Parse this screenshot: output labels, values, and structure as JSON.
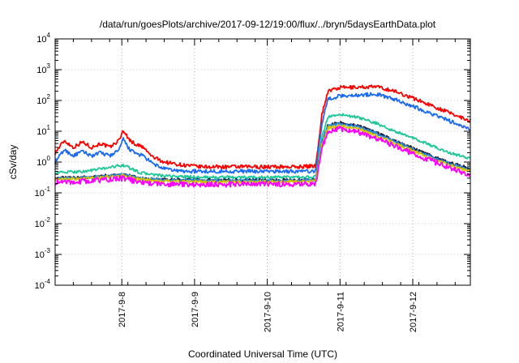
{
  "chart_data": {
    "type": "line",
    "title": "/data/run/goesPlots/archive/2017-09-12/19:00/flux/../bryn/5daysEarthData.plot",
    "xlabel": "Coordinated Universal Time (UTC)",
    "ylabel": "cSv/day",
    "yscale": "log",
    "ylim": [
      0.0001,
      10000
    ],
    "xlim": [
      "2017-09-07 02:00",
      "2017-09-12 19:00"
    ],
    "y_ticks": [
      {
        "base": "10",
        "exp": "-4"
      },
      {
        "base": "10",
        "exp": "-3"
      },
      {
        "base": "10",
        "exp": "-2"
      },
      {
        "base": "10",
        "exp": "-1"
      },
      {
        "base": "10",
        "exp": "0"
      },
      {
        "base": "10",
        "exp": "1"
      },
      {
        "base": "10",
        "exp": "2"
      },
      {
        "base": "10",
        "exp": "3"
      },
      {
        "base": "10",
        "exp": "4"
      }
    ],
    "x_ticks": [
      {
        "label": "2017-9-8",
        "t": "2017-09-08 00:00"
      },
      {
        "label": "2017-9-9",
        "t": "2017-09-09 00:00"
      },
      {
        "label": "2017-9-10",
        "t": "2017-09-10 00:00"
      },
      {
        "label": "2017-9-11",
        "t": "2017-09-11 00:00"
      },
      {
        "label": "2017-9-12",
        "t": "2017-09-12 00:00"
      }
    ],
    "grid": true,
    "x_grid_style": "dotted",
    "series": [
      {
        "color": "#ff0000",
        "x": [
          "2017-09-07 02:00",
          "2017-09-07 05:00",
          "2017-09-07 08:00",
          "2017-09-07 11:00",
          "2017-09-07 14:00",
          "2017-09-07 17:00",
          "2017-09-07 20:00",
          "2017-09-07 23:00",
          "2017-09-08 00:30",
          "2017-09-08 02:00",
          "2017-09-08 04:00",
          "2017-09-08 07:00",
          "2017-09-08 10:00",
          "2017-09-08 14:00",
          "2017-09-08 20:00",
          "2017-09-09 02:00",
          "2017-09-09 10:00",
          "2017-09-09 18:00",
          "2017-09-10 02:00",
          "2017-09-10 10:00",
          "2017-09-10 16:00",
          "2017-09-10 18:00",
          "2017-09-10 20:00",
          "2017-09-11 00:00",
          "2017-09-11 06:00",
          "2017-09-11 12:00",
          "2017-09-11 18:00",
          "2017-09-12 00:00",
          "2017-09-12 06:00",
          "2017-09-12 12:00",
          "2017-09-12 19:00"
        ],
        "y": [
          2.0,
          5.0,
          3.0,
          4.5,
          3.0,
          4.0,
          3.0,
          5.0,
          11,
          6.0,
          4.0,
          3.0,
          1.5,
          1.0,
          0.8,
          0.7,
          0.7,
          0.7,
          0.7,
          0.7,
          0.75,
          35,
          200,
          260,
          270,
          280,
          200,
          120,
          70,
          40,
          22
        ]
      },
      {
        "color": "#1b6cf2",
        "x": [
          "2017-09-07 02:00",
          "2017-09-07 05:00",
          "2017-09-07 08:00",
          "2017-09-07 11:00",
          "2017-09-07 14:00",
          "2017-09-07 17:00",
          "2017-09-07 20:00",
          "2017-09-07 23:00",
          "2017-09-08 00:30",
          "2017-09-08 02:00",
          "2017-09-08 04:00",
          "2017-09-08 07:00",
          "2017-09-08 10:00",
          "2017-09-08 14:00",
          "2017-09-08 20:00",
          "2017-09-09 02:00",
          "2017-09-09 10:00",
          "2017-09-09 18:00",
          "2017-09-10 02:00",
          "2017-09-10 10:00",
          "2017-09-10 16:00",
          "2017-09-10 18:00",
          "2017-09-10 20:00",
          "2017-09-11 00:00",
          "2017-09-11 06:00",
          "2017-09-11 12:00",
          "2017-09-11 18:00",
          "2017-09-12 00:00",
          "2017-09-12 06:00",
          "2017-09-12 12:00",
          "2017-09-12 19:00"
        ],
        "y": [
          1.0,
          2.5,
          1.6,
          2.2,
          1.6,
          2.0,
          1.6,
          2.4,
          5.5,
          3.0,
          2.0,
          1.6,
          0.9,
          0.6,
          0.5,
          0.5,
          0.5,
          0.5,
          0.5,
          0.5,
          0.5,
          18,
          110,
          140,
          150,
          160,
          110,
          65,
          38,
          22,
          11
        ]
      },
      {
        "color": "#1fc799",
        "x": [
          "2017-09-07 02:00",
          "2017-09-07 12:00",
          "2017-09-08 00:30",
          "2017-09-08 06:00",
          "2017-09-08 14:00",
          "2017-09-09 02:00",
          "2017-09-09 18:00",
          "2017-09-10 10:00",
          "2017-09-10 16:00",
          "2017-09-10 18:00",
          "2017-09-10 20:00",
          "2017-09-11 00:00",
          "2017-09-11 06:00",
          "2017-09-11 12:00",
          "2017-09-11 18:00",
          "2017-09-12 00:00",
          "2017-09-12 06:00",
          "2017-09-12 12:00",
          "2017-09-12 19:00"
        ],
        "y": [
          0.45,
          0.5,
          0.8,
          0.45,
          0.35,
          0.32,
          0.32,
          0.32,
          0.33,
          6,
          30,
          35,
          28,
          18,
          10,
          6,
          3.5,
          2.0,
          1.3
        ]
      },
      {
        "color": "#1a1a3a",
        "x": [
          "2017-09-07 02:00",
          "2017-09-07 12:00",
          "2017-09-08 00:30",
          "2017-09-08 06:00",
          "2017-09-08 14:00",
          "2017-09-09 02:00",
          "2017-09-09 18:00",
          "2017-09-10 10:00",
          "2017-09-10 16:00",
          "2017-09-10 18:00",
          "2017-09-10 20:00",
          "2017-09-11 00:00",
          "2017-09-11 06:00",
          "2017-09-11 12:00",
          "2017-09-11 18:00",
          "2017-09-12 00:00",
          "2017-09-12 06:00",
          "2017-09-12 12:00",
          "2017-09-12 19:00"
        ],
        "y": [
          0.3,
          0.32,
          0.4,
          0.3,
          0.27,
          0.26,
          0.26,
          0.26,
          0.27,
          4.0,
          16,
          19,
          15,
          9,
          5,
          2.8,
          1.6,
          0.95,
          0.62
        ]
      },
      {
        "color": "#2e8ad6",
        "x": [
          "2017-09-07 02:00",
          "2017-09-07 12:00",
          "2017-09-08 00:30",
          "2017-09-08 06:00",
          "2017-09-08 14:00",
          "2017-09-09 02:00",
          "2017-09-09 18:00",
          "2017-09-10 10:00",
          "2017-09-10 16:00",
          "2017-09-10 18:00",
          "2017-09-10 20:00",
          "2017-09-11 00:00",
          "2017-09-11 06:00",
          "2017-09-11 12:00",
          "2017-09-11 18:00",
          "2017-09-12 00:00",
          "2017-09-12 06:00",
          "2017-09-12 12:00",
          "2017-09-12 19:00"
        ],
        "y": [
          0.29,
          0.31,
          0.39,
          0.29,
          0.26,
          0.25,
          0.25,
          0.25,
          0.26,
          3.8,
          15,
          17.5,
          14,
          8.5,
          4.7,
          2.6,
          1.5,
          0.9,
          0.58
        ]
      },
      {
        "color": "#d4c400",
        "x": [
          "2017-09-07 02:00",
          "2017-09-07 12:00",
          "2017-09-08 00:30",
          "2017-09-08 06:00",
          "2017-09-08 14:00",
          "2017-09-09 02:00",
          "2017-09-09 18:00",
          "2017-09-10 10:00",
          "2017-09-10 16:00",
          "2017-09-10 18:00",
          "2017-09-10 20:00",
          "2017-09-11 00:00",
          "2017-09-11 06:00",
          "2017-09-11 12:00",
          "2017-09-11 18:00",
          "2017-09-12 00:00",
          "2017-09-12 06:00",
          "2017-09-12 12:00",
          "2017-09-12 19:00"
        ],
        "y": [
          0.27,
          0.29,
          0.36,
          0.27,
          0.24,
          0.23,
          0.23,
          0.23,
          0.24,
          3.4,
          13,
          15,
          12,
          7.2,
          4.1,
          2.3,
          1.3,
          0.8,
          0.5
        ]
      },
      {
        "color": "#ff00ff",
        "x": [
          "2017-09-07 02:00",
          "2017-09-07 12:00",
          "2017-09-08 00:30",
          "2017-09-08 06:00",
          "2017-09-08 14:00",
          "2017-09-09 02:00",
          "2017-09-09 18:00",
          "2017-09-10 10:00",
          "2017-09-10 16:00",
          "2017-09-10 18:00",
          "2017-09-10 20:00",
          "2017-09-11 00:00",
          "2017-09-11 06:00",
          "2017-09-11 12:00",
          "2017-09-11 18:00",
          "2017-09-12 00:00",
          "2017-09-12 06:00",
          "2017-09-12 12:00",
          "2017-09-12 19:00"
        ],
        "y": [
          0.22,
          0.24,
          0.3,
          0.22,
          0.19,
          0.19,
          0.19,
          0.19,
          0.2,
          2.8,
          10,
          12,
          9.5,
          6,
          3.4,
          1.9,
          1.1,
          0.65,
          0.4
        ]
      }
    ]
  }
}
